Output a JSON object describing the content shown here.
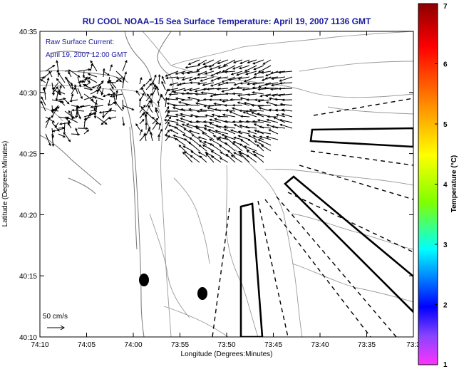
{
  "title": "RU COOL  NOAA–15  Sea Surface Temperature:  April 19, 2007 1136 GMT",
  "legend": {
    "line1": "Raw Surface Current:",
    "line2": "April 19, 2007 12:00 GMT",
    "scale_label": "50 cm/s"
  },
  "axes": {
    "xlabel": "Longitude (Degrees:Minutes)",
    "ylabel": "Latitude (Degrees:Minutes)",
    "xticks": [
      "74:10",
      "74:05",
      "74:00",
      "73:55",
      "73:50",
      "73:45",
      "73:40",
      "73:35",
      "73:3"
    ],
    "yticks": [
      "40:35",
      "40:30",
      "40:25",
      "40:20",
      "40:15",
      "40:10"
    ]
  },
  "colorbar": {
    "label": "Temperature (°C)",
    "ticks": [
      "7",
      "6",
      "5",
      "4",
      "3",
      "2",
      "1"
    ],
    "colors": [
      "#8b0000",
      "#ff0000",
      "#ff8c00",
      "#ffff00",
      "#7fff00",
      "#00ffff",
      "#0000ff",
      "#ff33ff"
    ]
  }
}
